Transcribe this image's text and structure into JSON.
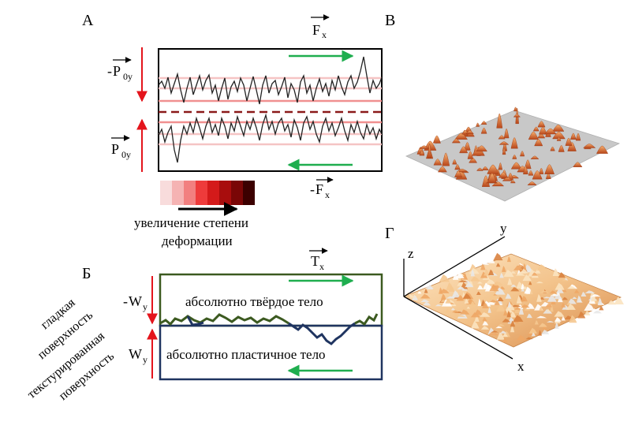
{
  "panels": {
    "A": {
      "label": "А",
      "force_top": {
        "arrow": "→",
        "main": "F",
        "sub": "x"
      },
      "force_bottom": {
        "prefix": "-",
        "arrow": "→",
        "main": "F",
        "sub": "x"
      },
      "load_top": {
        "prefix": "-",
        "arrow": "→",
        "main": "P",
        "sub": "0y"
      },
      "load_bottom": {
        "arrow": "→",
        "main": "P",
        "sub": "0y"
      },
      "deformation_scale_colors": [
        "#f8dcdc",
        "#f5b3b3",
        "#f28080",
        "#ee3b3b",
        "#d41a1a",
        "#a80d0d",
        "#7a0606",
        "#3c0000"
      ],
      "legend_line1": "увеличение степени",
      "legend_line2": "деформации"
    },
    "B": {
      "label": "В"
    },
    "Б": {
      "label": "Б",
      "force": {
        "arrow": "→",
        "main": "T",
        "sub": "x"
      },
      "load_top": {
        "prefix": "-",
        "main": "W",
        "sub": "y"
      },
      "load_bottom": {
        "main": "W",
        "sub": "y"
      },
      "upper_body": "абсолютно твёрдое тело",
      "lower_body": "абсолютно пластичное тело",
      "side_labels": [
        "гладкая",
        "поверхность",
        "текстурированная",
        "поверхность"
      ]
    },
    "G": {
      "label": "Г",
      "axis_z": "z",
      "axis_y": "y",
      "axis_x": "x"
    }
  },
  "colors": {
    "red_arrow": "#e4141c",
    "green_arrow": "#1fae4f",
    "dark_green": "#3c5a20",
    "navy": "#1f3460",
    "dashed_line": "#8b1a1a",
    "surface_gray": "#c8c8c8",
    "bump_orange": "#e0783a"
  }
}
